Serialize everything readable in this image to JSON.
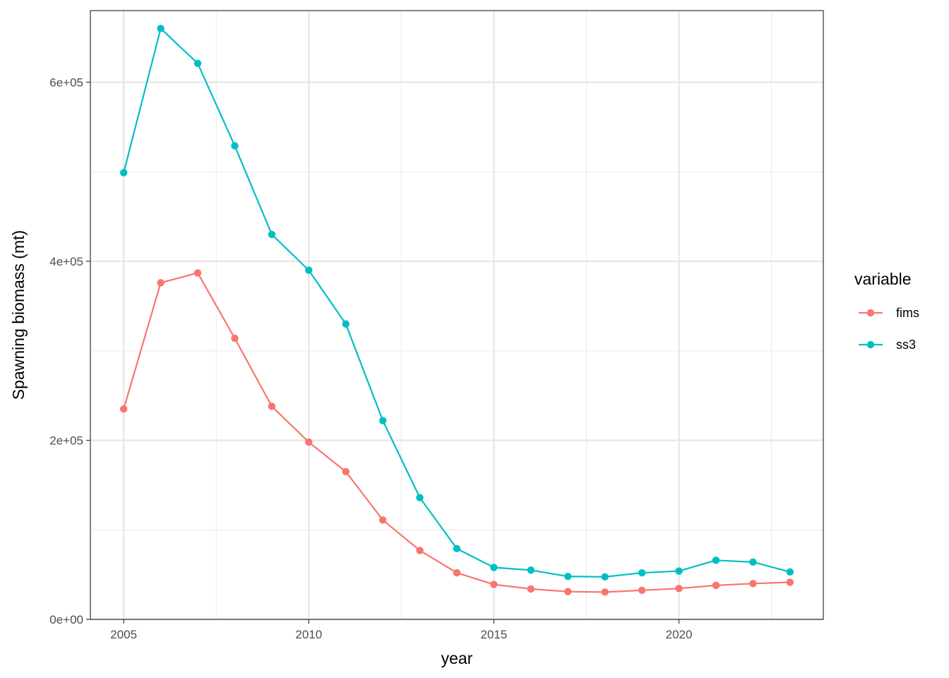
{
  "chart_data": {
    "type": "line",
    "xlabel": "year",
    "ylabel": "Spawning biomass (mt)",
    "xlim": [
      2004.1,
      2023.9
    ],
    "ylim": [
      0,
      680000
    ],
    "x_ticks": [
      2005,
      2010,
      2015,
      2020
    ],
    "x_tick_labels": [
      "2005",
      "2010",
      "2015",
      "2020"
    ],
    "x_minor_ticks": [
      2007.5,
      2012.5,
      2017.5,
      2022.5
    ],
    "y_ticks": [
      0,
      200000,
      400000,
      600000
    ],
    "y_tick_labels": [
      "0e+00",
      "2e+05",
      "4e+05",
      "6e+05"
    ],
    "y_minor_ticks": [
      100000,
      300000,
      500000
    ],
    "grid": true,
    "legend_title": "variable",
    "legend_position": "right",
    "x": [
      2005,
      2006,
      2007,
      2008,
      2009,
      2010,
      2011,
      2012,
      2013,
      2014,
      2015,
      2016,
      2017,
      2018,
      2019,
      2020,
      2021,
      2022,
      2023
    ],
    "series": [
      {
        "name": "fims",
        "color": "#F8766D",
        "values": [
          235000,
          376000,
          387000,
          314000,
          238000,
          198000,
          165000,
          111000,
          77000,
          52000,
          39000,
          34000,
          31000,
          30500,
          32500,
          34500,
          38000,
          40000,
          41500
        ]
      },
      {
        "name": "ss3",
        "color": "#00BFC4",
        "values": [
          499000,
          660000,
          621000,
          529000,
          430000,
          390000,
          330000,
          222000,
          136000,
          79000,
          58000,
          55000,
          48000,
          47500,
          52000,
          54000,
          66000,
          64000,
          53000
        ]
      }
    ]
  }
}
